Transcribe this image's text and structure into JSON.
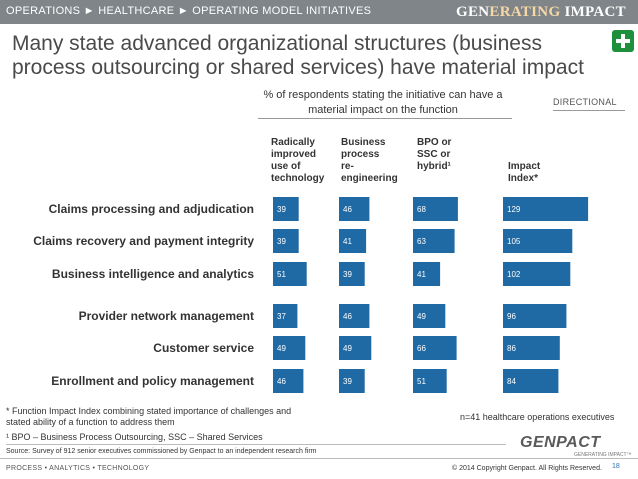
{
  "header": {
    "breadcrumb": "OPERATIONS ► HEALTHCARE ► OPERATING MODEL INITIATIVES",
    "brand_prefix": "GEN",
    "brand_middle": "ERATING",
    "brand_suffix": " IMPACT"
  },
  "headline": "Many state advanced organizational structures (business process outsourcing or shared services) have material impact",
  "subtitle": "% of respondents stating the initiative can have a material impact on the function",
  "directional": "DIRECTIONAL",
  "columns": [
    {
      "label_lines": [
        "Radically",
        "improved",
        "use of",
        "technology"
      ]
    },
    {
      "label_lines": [
        "Business",
        "process",
        "re-",
        "engineering"
      ]
    },
    {
      "label_lines": [
        "BPO or",
        "SSC or",
        "hybrid¹"
      ]
    },
    {
      "label_lines": [
        "Impact",
        "Index*"
      ]
    }
  ],
  "chart_data": {
    "type": "bar",
    "categories": [
      "Claims processing and adjudication",
      "Claims recovery and payment integrity",
      "Business intelligence and analytics",
      "Provider network management",
      "Customer service",
      "Enrollment and policy management"
    ],
    "series": [
      {
        "name": "Radically improved use of technology",
        "values": [
          39,
          39,
          51,
          37,
          49,
          46
        ]
      },
      {
        "name": "Business process re-engineering",
        "values": [
          46,
          41,
          39,
          46,
          49,
          39
        ]
      },
      {
        "name": "BPO or SSC or hybrid¹",
        "values": [
          68,
          63,
          41,
          49,
          66,
          51
        ]
      },
      {
        "name": "Impact Index*",
        "values": [
          129,
          105,
          102,
          96,
          86,
          84
        ]
      }
    ],
    "colors": {
      "bar": "#1f6aa5",
      "label": "#ffffff"
    }
  },
  "footnotes": {
    "impact_index": "* Function Impact Index combining stated importance of challenges and stated ability of a function to address them",
    "bpo": "¹ BPO – Business Process Outsourcing, SSC – Shared Services",
    "n_note": "n=41 healthcare operations executives",
    "source": "Source: Survey of 912 senior executives commissioned by Genpact to an independent research firm"
  },
  "logo": {
    "name": "GENPACT",
    "tagline": "GENERATING IMPACT™"
  },
  "footer": {
    "left": "PROCESS • ANALYTICS • TECHNOLOGY",
    "right": "© 2014 Copyright Genpact. All Rights Reserved.",
    "page": "18"
  }
}
